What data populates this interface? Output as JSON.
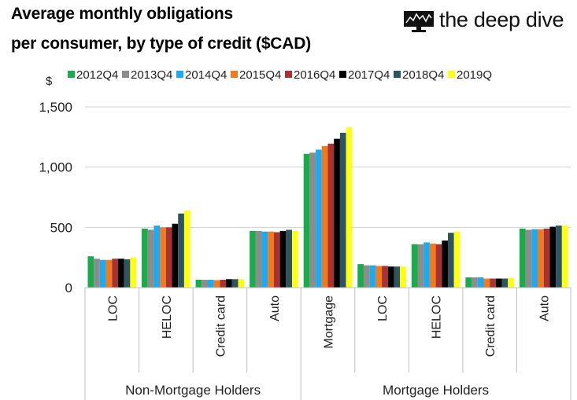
{
  "title_line1": "Average monthly obligations",
  "title_line2": "per consumer, by type of credit ($CAD)",
  "logo": {
    "text": "the deep dive",
    "icon": "monitor-chart-icon"
  },
  "chart_data": {
    "type": "bar",
    "ylabel": "$",
    "ylim": [
      0,
      1500
    ],
    "yticks": [
      "0",
      "500",
      "1,000",
      "1,500"
    ],
    "ytick_values": [
      0,
      500,
      1000,
      1500
    ],
    "grid": true,
    "legend_position": "top",
    "groups": [
      {
        "label": "Non-Mortgage Holders",
        "categories": [
          "LOC",
          "HELOC",
          "Credit card",
          "Auto"
        ]
      },
      {
        "label": "Mortgage Holders",
        "categories": [
          "Mortgage",
          "LOC",
          "HELOC",
          "Credit card",
          "Auto"
        ]
      }
    ],
    "categories": [
      "LOC",
      "HELOC",
      "Credit card",
      "Auto",
      "Mortgage",
      "LOC",
      "HELOC",
      "Credit card",
      "Auto"
    ],
    "series": [
      {
        "name": "2012Q4",
        "color": "#1aab4b",
        "values": [
          260,
          490,
          65,
          470,
          1110,
          195,
          360,
          85,
          490
        ]
      },
      {
        "name": "2013Q4",
        "color": "#8c8c8c",
        "values": [
          240,
          480,
          65,
          470,
          1120,
          185,
          360,
          85,
          480
        ]
      },
      {
        "name": "2014Q4",
        "color": "#1eaaf0",
        "values": [
          230,
          515,
          65,
          465,
          1145,
          185,
          375,
          85,
          485
        ]
      },
      {
        "name": "2015Q4",
        "color": "#f07a1e",
        "values": [
          230,
          500,
          62,
          465,
          1175,
          180,
          365,
          75,
          485
        ]
      },
      {
        "name": "2016Q4",
        "color": "#a83232",
        "values": [
          240,
          500,
          65,
          460,
          1195,
          180,
          360,
          75,
          490
        ]
      },
      {
        "name": "2017Q4",
        "color": "#000000",
        "values": [
          240,
          530,
          70,
          470,
          1235,
          175,
          390,
          75,
          505
        ]
      },
      {
        "name": "2018Q4",
        "color": "#2f5461",
        "values": [
          235,
          615,
          70,
          480,
          1285,
          175,
          455,
          75,
          515
        ]
      },
      {
        "name": "2019Q",
        "color": "#ffff14",
        "values": [
          250,
          640,
          70,
          470,
          1330,
          175,
          465,
          80,
          515
        ]
      }
    ]
  }
}
